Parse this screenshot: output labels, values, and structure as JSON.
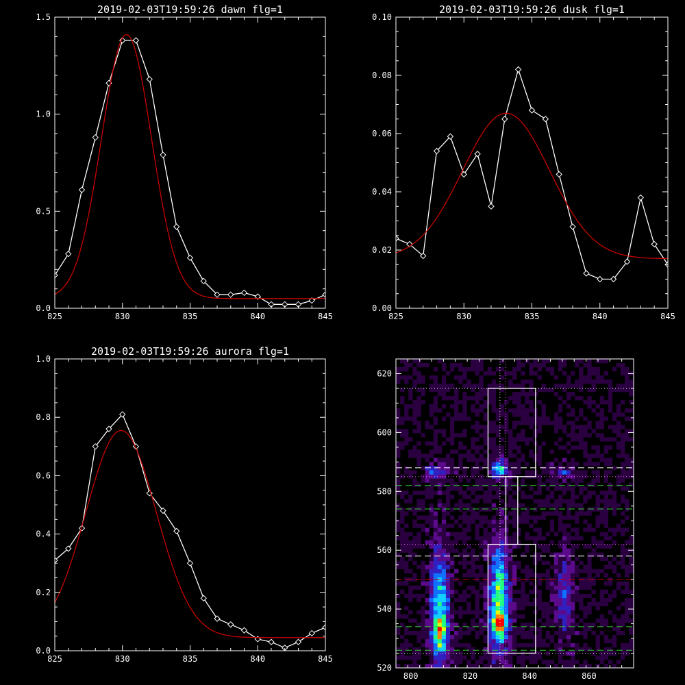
{
  "chart_data": [
    {
      "type": "line",
      "title": "2019-02-03T19:59:26 dawn flg=1",
      "xlim": [
        825,
        845
      ],
      "ylim": [
        0,
        1.5
      ],
      "xticks": [
        "825",
        "830",
        "835",
        "840",
        "845"
      ],
      "yticks": [
        "0.0",
        "0.5",
        "1.0",
        "1.5"
      ],
      "xtick_values": [
        825,
        830,
        835,
        840,
        845
      ],
      "ytick_values": [
        0,
        0.5,
        1.0,
        1.5
      ],
      "series": [
        {
          "color": "#ffffff",
          "markers": "diamond",
          "x": [
            825,
            826,
            827,
            828,
            829,
            830,
            831,
            832,
            833,
            834,
            835,
            836,
            837,
            838,
            839,
            840,
            841,
            842,
            843,
            844,
            845
          ],
          "y": [
            0.17,
            0.28,
            0.61,
            0.88,
            1.16,
            1.38,
            1.38,
            1.18,
            0.79,
            0.42,
            0.26,
            0.14,
            0.07,
            0.07,
            0.08,
            0.06,
            0.02,
            0.02,
            0.02,
            0.04,
            0.07
          ]
        },
        {
          "color": "#cc0000",
          "markers": "none",
          "gaussian": {
            "amp": 1.36,
            "center": 830.3,
            "sigma": 1.85,
            "offset": 0.05
          }
        }
      ]
    },
    {
      "type": "line",
      "title": "2019-02-03T19:59:26 dusk flg=1",
      "xlim": [
        825,
        845
      ],
      "ylim": [
        0,
        0.1
      ],
      "xticks": [
        "825",
        "830",
        "835",
        "840",
        "845"
      ],
      "yticks": [
        "0.00",
        "0.02",
        "0.04",
        "0.06",
        "0.08",
        "0.10"
      ],
      "xtick_values": [
        825,
        830,
        835,
        840,
        845
      ],
      "ytick_values": [
        0,
        0.02,
        0.04,
        0.06,
        0.08,
        0.1
      ],
      "series": [
        {
          "color": "#ffffff",
          "markers": "diamond",
          "x": [
            825,
            826,
            827,
            828,
            829,
            830,
            831,
            832,
            833,
            834,
            835,
            836,
            837,
            838,
            839,
            840,
            841,
            842,
            843,
            844,
            845
          ],
          "y": [
            0.024,
            0.022,
            0.018,
            0.054,
            0.059,
            0.046,
            0.053,
            0.035,
            0.065,
            0.082,
            0.068,
            0.065,
            0.046,
            0.028,
            0.012,
            0.01,
            0.01,
            0.016,
            0.038,
            0.022,
            0.015
          ]
        },
        {
          "color": "#cc0000",
          "markers": "none",
          "gaussian": {
            "amp": 0.05,
            "center": 833.1,
            "sigma": 3.2,
            "offset": 0.017
          }
        }
      ]
    },
    {
      "type": "line",
      "title": "2019-02-03T19:59:26 aurora flg=1",
      "xlim": [
        825,
        845
      ],
      "ylim": [
        0,
        1.0
      ],
      "xticks": [
        "825",
        "830",
        "835",
        "840",
        "845"
      ],
      "yticks": [
        "0.0",
        "0.2",
        "0.4",
        "0.6",
        "0.8",
        "1.0"
      ],
      "xtick_values": [
        825,
        830,
        835,
        840,
        845
      ],
      "ytick_values": [
        0,
        0.2,
        0.4,
        0.6,
        0.8,
        1.0
      ],
      "series": [
        {
          "color": "#ffffff",
          "markers": "diamond",
          "x": [
            825,
            826,
            827,
            828,
            829,
            830,
            831,
            832,
            833,
            834,
            835,
            836,
            837,
            838,
            839,
            840,
            841,
            842,
            843,
            844,
            845
          ],
          "y": [
            0.31,
            0.35,
            0.42,
            0.7,
            0.76,
            0.81,
            0.7,
            0.54,
            0.48,
            0.41,
            0.3,
            0.18,
            0.11,
            0.09,
            0.07,
            0.04,
            0.03,
            0.01,
            0.03,
            0.06,
            0.08
          ]
        },
        {
          "color": "#cc0000",
          "markers": "none",
          "gaussian": {
            "amp": 0.71,
            "center": 829.9,
            "sigma": 2.6,
            "offset": 0.045
          }
        }
      ]
    },
    {
      "type": "heatmap",
      "xlim": [
        795,
        875
      ],
      "ylim": [
        520,
        625
      ],
      "xticks": [
        "800",
        "820",
        "840",
        "860"
      ],
      "yticks": [
        "520",
        "540",
        "560",
        "580",
        "600",
        "620"
      ],
      "xtick_values": [
        800,
        820,
        840,
        860
      ],
      "ytick_values": [
        520,
        540,
        560,
        580,
        600,
        620
      ],
      "colormap": [
        "#000000",
        "#2a0040",
        "#5a0a8a",
        "#3020c0",
        "#1070ff",
        "#10d0ff",
        "#20ff80",
        "#e0ff00",
        "#ff8000",
        "#ff0000"
      ],
      "blobs": [
        {
          "x": 809,
          "y": 540,
          "sx": 2.2,
          "sy": 14,
          "amp": 0.55
        },
        {
          "x": 809,
          "y": 531,
          "sx": 1.6,
          "sy": 3.5,
          "amp": 0.4
        },
        {
          "x": 829,
          "y": 543,
          "sx": 2.4,
          "sy": 13,
          "amp": 0.65
        },
        {
          "x": 829,
          "y": 534,
          "sx": 1.5,
          "sy": 3,
          "amp": 0.5
        },
        {
          "x": 851,
          "y": 544,
          "sx": 2.2,
          "sy": 10,
          "amp": 0.28
        },
        {
          "x": 808,
          "y": 586,
          "sx": 2.4,
          "sy": 1.6,
          "amp": 0.4
        },
        {
          "x": 829,
          "y": 587,
          "sx": 2.0,
          "sy": 2.2,
          "amp": 0.55
        },
        {
          "x": 851,
          "y": 586,
          "sx": 2.0,
          "sy": 1.5,
          "amp": 0.3
        }
      ],
      "boxes": [
        {
          "x0": 826,
          "x1": 842,
          "y0": 525,
          "y1": 562
        },
        {
          "x0": 826,
          "x1": 842,
          "y0": 585,
          "y1": 615
        },
        {
          "x0": 832,
          "x1": 836,
          "y0": 562,
          "y1": 585
        }
      ],
      "hlines": [
        {
          "y": 615,
          "color": "#ffffff",
          "style": "dotted"
        },
        {
          "y": 588,
          "color": "#ffffff",
          "style": "dashed"
        },
        {
          "y": 585,
          "color": "#ff66ff",
          "style": "dotted"
        },
        {
          "y": 582,
          "color": "#33cc33",
          "style": "dashed"
        },
        {
          "y": 574,
          "color": "#33cc33",
          "style": "dashed"
        },
        {
          "y": 562,
          "color": "#ff66ff",
          "style": "dotted"
        },
        {
          "y": 558,
          "color": "#ffffff",
          "style": "dashed"
        },
        {
          "y": 550,
          "color": "#cc0000",
          "style": "dashed"
        },
        {
          "y": 534,
          "color": "#33cc33",
          "style": "dashed"
        },
        {
          "y": 526,
          "color": "#33cc33",
          "style": "dashed"
        },
        {
          "y": 525,
          "color": "#ffffff",
          "style": "dotted"
        }
      ],
      "vlines": [
        {
          "x": 830,
          "color": "#ffffff",
          "style": "dotted"
        },
        {
          "x": 832,
          "color": "#ff66ff",
          "style": "dotted"
        }
      ]
    }
  ]
}
